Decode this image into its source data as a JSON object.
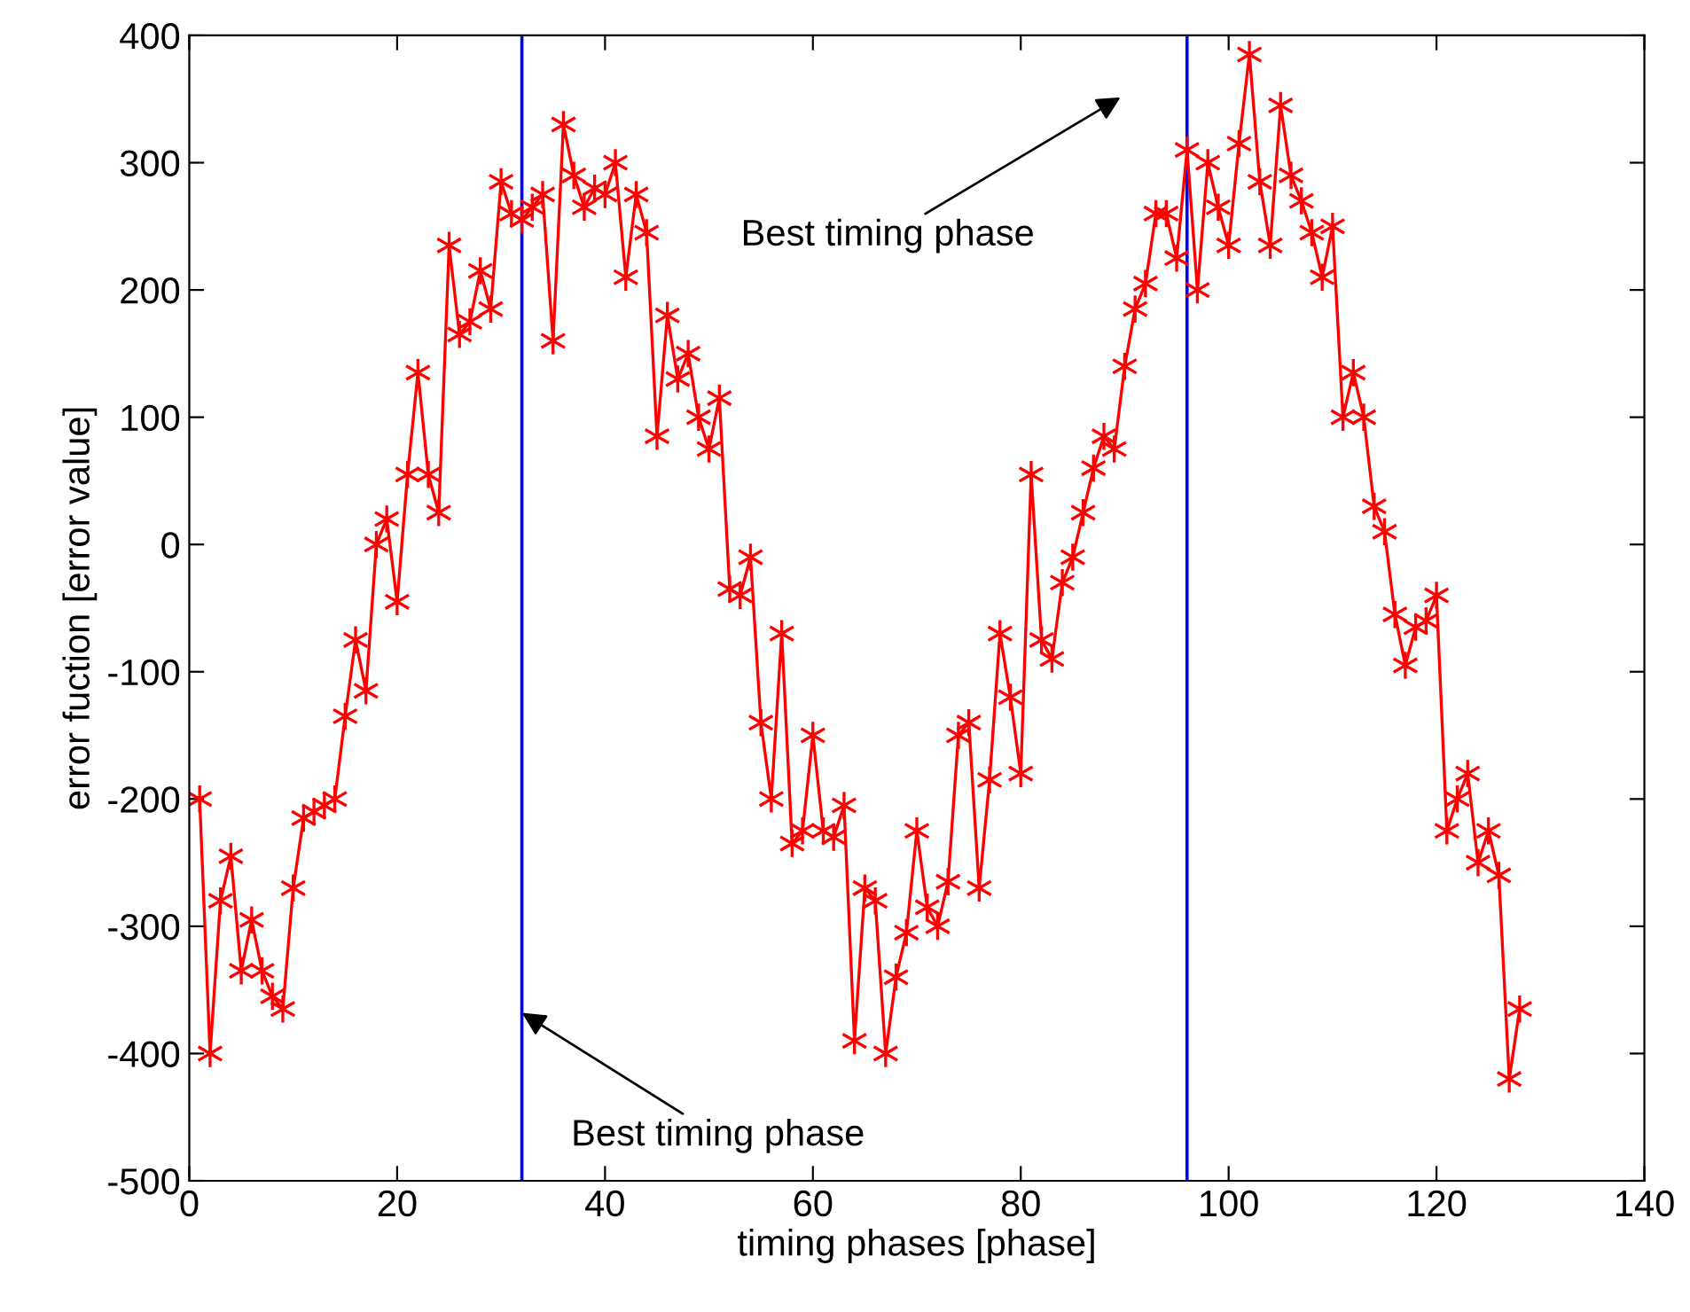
{
  "chart_data": {
    "type": "line",
    "xlabel": "timing phases [phase]",
    "ylabel": "error fuction [error value]",
    "x": [
      1,
      2,
      3,
      4,
      5,
      6,
      7,
      8,
      9,
      10,
      11,
      12,
      13,
      14,
      15,
      16,
      17,
      18,
      19,
      20,
      21,
      22,
      23,
      24,
      25,
      26,
      27,
      28,
      29,
      30,
      31,
      32,
      33,
      34,
      35,
      36,
      37,
      38,
      39,
      40,
      41,
      42,
      43,
      44,
      45,
      46,
      47,
      48,
      49,
      50,
      51,
      52,
      53,
      54,
      55,
      56,
      57,
      58,
      59,
      60,
      61,
      62,
      63,
      64,
      65,
      66,
      67,
      68,
      69,
      70,
      71,
      72,
      73,
      74,
      75,
      76,
      77,
      78,
      79,
      80,
      81,
      82,
      83,
      84,
      85,
      86,
      87,
      88,
      89,
      90,
      91,
      92,
      93,
      94,
      95,
      96,
      97,
      98,
      99,
      100,
      101,
      102,
      103,
      104,
      105,
      106,
      107,
      108,
      109,
      110,
      111,
      112,
      113,
      114,
      115,
      116,
      117,
      118,
      119,
      120,
      121,
      122,
      123,
      124,
      125,
      126,
      127,
      128
    ],
    "series": [
      {
        "color": "#ff0000",
        "values": [
          -200,
          -400,
          -280,
          -245,
          -335,
          -295,
          -335,
          -355,
          -365,
          -270,
          -215,
          -210,
          -205,
          -200,
          -135,
          -75,
          -115,
          0,
          20,
          -45,
          55,
          135,
          55,
          25,
          235,
          165,
          175,
          215,
          185,
          285,
          260,
          255,
          265,
          275,
          160,
          330,
          290,
          265,
          280,
          275,
          300,
          210,
          275,
          245,
          85,
          180,
          130,
          150,
          100,
          75,
          115,
          -35,
          -40,
          -10,
          -140,
          -200,
          -70,
          -235,
          -225,
          -150,
          -225,
          -230,
          -205,
          -390,
          -270,
          -280,
          -400,
          -340,
          -305,
          -225,
          -285,
          -300,
          -265,
          -150,
          -140,
          -270,
          -185,
          -70,
          -120,
          -180,
          55,
          -75,
          -90,
          -30,
          -10,
          25,
          60,
          85,
          75,
          140,
          185,
          205,
          260,
          260,
          225,
          310,
          200,
          300,
          265,
          235,
          315,
          385,
          285,
          235,
          345,
          290,
          270,
          245,
          210,
          250,
          100,
          135,
          100,
          30,
          10,
          -55,
          -95,
          -65,
          -60,
          -40,
          -225,
          -200,
          -180,
          -250,
          -225,
          -260,
          -420,
          -365
        ]
      }
    ],
    "marker": "cross",
    "line_style": "solid",
    "xlim": [
      0,
      140
    ],
    "xticks": [
      0,
      20,
      40,
      60,
      80,
      100,
      120,
      140
    ],
    "ylim": [
      -500,
      400
    ],
    "yticks": [
      -500,
      -400,
      -300,
      -200,
      -100,
      0,
      100,
      200,
      300,
      400
    ],
    "grid": false,
    "ref_lines": [
      {
        "axis": "x",
        "value": 32,
        "color": "#0000ff"
      },
      {
        "axis": "x",
        "value": 96,
        "color": "#0000ff"
      }
    ],
    "annotations": [
      "Best timing phase",
      {
        "text": "Best timing phase",
        "x": 32,
        "y": -368
      }
    ]
  }
}
